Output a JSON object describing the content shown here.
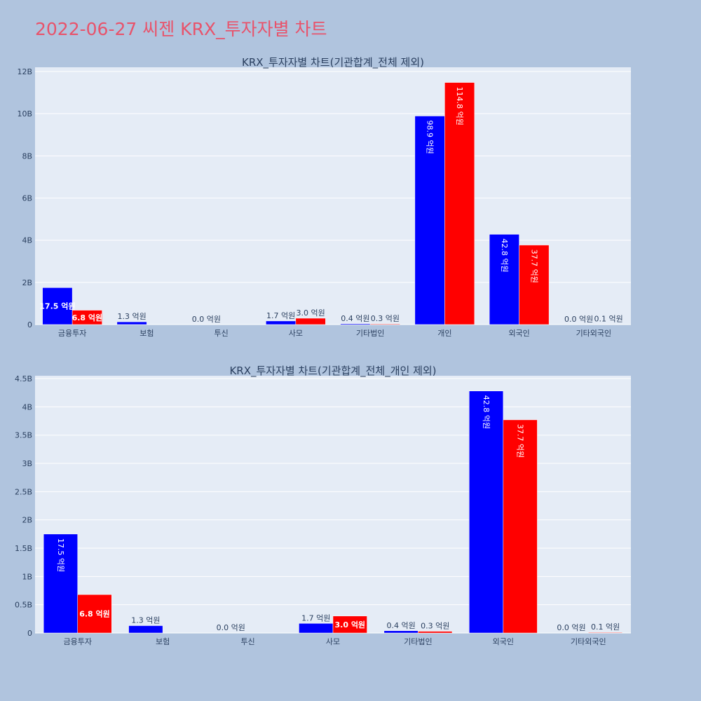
{
  "page_title": "2022-06-27 씨젠 KRX_투자자별 차트",
  "colors": {
    "buy": "#0000ff",
    "sell": "#ff0000",
    "plot_bg": "#e5ecf6",
    "page_bg": "#b0c4de",
    "title": "#e8536b"
  },
  "chart_data": [
    {
      "type": "bar",
      "title": "KRX_투자자별 차트(기관합계_전체 제외)",
      "categories": [
        "금융투자",
        "보험",
        "투신",
        "사모",
        "기타법인",
        "개인",
        "외국인",
        "기타외국인"
      ],
      "series": [
        {
          "values": [
            1.75,
            0.13,
            0.0,
            0.17,
            0.04,
            9.89,
            4.28,
            0.0
          ],
          "labels": [
            "17.5 억원",
            "1.3 억원",
            "0.0 억원",
            "1.7 억원",
            "0.4 억원",
            "98.9 억원",
            "42.8 억원",
            "0.0 억원"
          ]
        },
        {
          "values": [
            0.68,
            0.0,
            0.0,
            0.3,
            0.03,
            11.48,
            3.77,
            0.01
          ],
          "labels": [
            "6.8 억원",
            "",
            "",
            "3.0 억원",
            "0.3 억원",
            "114.8 억원",
            "37.7 억원",
            "0.1 억원"
          ]
        }
      ],
      "ylim": [
        0,
        12.2
      ],
      "ytick_values": [
        0,
        2,
        4,
        6,
        8,
        10,
        12
      ],
      "ytick_labels": [
        "0",
        "2B",
        "4B",
        "6B",
        "8B",
        "10B",
        "12B"
      ],
      "grid": true
    },
    {
      "type": "bar",
      "title": "KRX_투자자별 차트(기관합계_전체_개인 제외)",
      "categories": [
        "금융투자",
        "보험",
        "투신",
        "사모",
        "기타법인",
        "외국인",
        "기타외국인"
      ],
      "series": [
        {
          "values": [
            1.75,
            0.13,
            0.0,
            0.17,
            0.04,
            4.28,
            0.0
          ],
          "labels": [
            "17.5 억원",
            "1.3 억원",
            "0.0 억원",
            "1.7 억원",
            "0.4 억원",
            "42.8 억원",
            "0.0 억원"
          ]
        },
        {
          "values": [
            0.68,
            0.0,
            0.0,
            0.3,
            0.03,
            3.77,
            0.01
          ],
          "labels": [
            "6.8 억원",
            "",
            "",
            "3.0 억원",
            "0.3 억원",
            "37.7 억원",
            "0.1 억원"
          ]
        }
      ],
      "ylim": [
        0,
        4.55
      ],
      "ytick_values": [
        0,
        0.5,
        1,
        1.5,
        2,
        2.5,
        3,
        3.5,
        4,
        4.5
      ],
      "ytick_labels": [
        "0",
        "0.5B",
        "1B",
        "1.5B",
        "2B",
        "2.5B",
        "3B",
        "3.5B",
        "4B",
        "4.5B"
      ],
      "grid": true
    }
  ]
}
